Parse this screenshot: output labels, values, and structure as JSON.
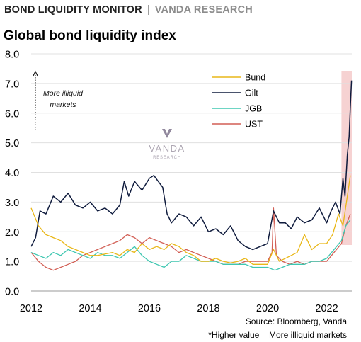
{
  "header": {
    "name": "BOND LIQUIDITY MONITOR",
    "separator": "|",
    "brand": "VANDA RESEARCH"
  },
  "chart_title": "Global bond liquidity index",
  "annotation": {
    "line1": "More illiquid",
    "line2": "markets"
  },
  "watermark": {
    "name": "VANDA",
    "sub": "RESEARCH"
  },
  "source": "Source: Bloomberg, Vanda",
  "footnote": "*Higher value = More illiquid markets",
  "chart_data": {
    "type": "line",
    "title": "Global bond liquidity index",
    "xlabel": "",
    "ylabel": "",
    "xlim": [
      2012,
      2022.85
    ],
    "ylim": [
      0,
      8
    ],
    "y_ticks": [
      "0.0",
      "1.0",
      "2.0",
      "3.0",
      "4.0",
      "5.0",
      "6.0",
      "7.0",
      "8.0"
    ],
    "x_ticks": [
      "2012",
      "2014",
      "2016",
      "2018",
      "2020",
      "2022"
    ],
    "grid": "horizontal",
    "legend_position": "top-right",
    "highlight_region": {
      "x_start": 2022.5,
      "x_end": 2022.85,
      "color": "#f6d2d2"
    },
    "series": [
      {
        "name": "Bund",
        "color": "#e9b718",
        "x": [
          2012.0,
          2012.25,
          2012.5,
          2012.75,
          2013.0,
          2013.25,
          2013.5,
          2013.75,
          2014.0,
          2014.25,
          2014.5,
          2014.75,
          2015.0,
          2015.25,
          2015.5,
          2015.75,
          2016.0,
          2016.25,
          2016.5,
          2016.75,
          2017.0,
          2017.25,
          2017.5,
          2017.75,
          2018.0,
          2018.25,
          2018.5,
          2018.75,
          2019.0,
          2019.25,
          2019.5,
          2019.75,
          2020.0,
          2020.2,
          2020.4,
          2020.6,
          2020.8,
          2021.0,
          2021.25,
          2021.5,
          2021.75,
          2022.0,
          2022.2,
          2022.4,
          2022.55,
          2022.7,
          2022.8
        ],
        "y": [
          2.8,
          2.2,
          1.9,
          1.8,
          1.7,
          1.5,
          1.4,
          1.3,
          1.2,
          1.2,
          1.25,
          1.3,
          1.2,
          1.4,
          1.3,
          1.6,
          1.4,
          1.5,
          1.4,
          1.6,
          1.5,
          1.3,
          1.2,
          1.0,
          1.0,
          1.1,
          1.0,
          0.95,
          1.0,
          1.1,
          0.9,
          0.9,
          0.9,
          1.4,
          1.0,
          1.1,
          1.2,
          1.3,
          1.9,
          1.4,
          1.6,
          1.6,
          1.9,
          2.6,
          2.2,
          3.2,
          3.9
        ]
      },
      {
        "name": "Gilt",
        "color": "#0f1b3d",
        "x": [
          2012.0,
          2012.15,
          2012.3,
          2012.5,
          2012.75,
          2013.0,
          2013.25,
          2013.5,
          2013.75,
          2014.0,
          2014.25,
          2014.5,
          2014.75,
          2015.0,
          2015.15,
          2015.3,
          2015.5,
          2015.75,
          2016.0,
          2016.15,
          2016.3,
          2016.45,
          2016.6,
          2016.75,
          2017.0,
          2017.25,
          2017.5,
          2017.75,
          2018.0,
          2018.25,
          2018.5,
          2018.75,
          2019.0,
          2019.25,
          2019.5,
          2019.75,
          2020.0,
          2020.2,
          2020.4,
          2020.6,
          2020.8,
          2021.0,
          2021.25,
          2021.5,
          2021.75,
          2022.0,
          2022.15,
          2022.3,
          2022.45,
          2022.55,
          2022.62,
          2022.7,
          2022.76,
          2022.8,
          2022.84
        ],
        "y": [
          1.5,
          1.8,
          2.7,
          2.6,
          3.2,
          3.0,
          3.3,
          2.9,
          2.8,
          3.0,
          2.7,
          2.8,
          2.6,
          2.9,
          3.7,
          3.2,
          3.7,
          3.4,
          3.8,
          3.9,
          3.7,
          3.5,
          2.6,
          2.3,
          2.6,
          2.5,
          2.2,
          2.5,
          2.0,
          2.1,
          1.9,
          2.2,
          1.7,
          1.5,
          1.4,
          1.5,
          1.6,
          2.7,
          2.3,
          2.3,
          2.1,
          2.5,
          2.3,
          2.4,
          2.8,
          2.3,
          2.7,
          3.0,
          2.6,
          3.8,
          3.2,
          4.6,
          5.2,
          6.2,
          7.1
        ]
      },
      {
        "name": "JGB",
        "color": "#3fc7b1",
        "x": [
          2012.0,
          2012.25,
          2012.5,
          2012.75,
          2013.0,
          2013.25,
          2013.5,
          2013.75,
          2014.0,
          2014.25,
          2014.5,
          2014.75,
          2015.0,
          2015.25,
          2015.5,
          2015.75,
          2016.0,
          2016.25,
          2016.5,
          2016.75,
          2017.0,
          2017.25,
          2017.5,
          2017.75,
          2018.0,
          2018.25,
          2018.5,
          2018.75,
          2019.0,
          2019.25,
          2019.5,
          2019.75,
          2020.0,
          2020.25,
          2020.5,
          2020.75,
          2021.0,
          2021.25,
          2021.5,
          2021.75,
          2022.0,
          2022.25,
          2022.5,
          2022.65,
          2022.8
        ],
        "y": [
          1.3,
          1.2,
          1.1,
          1.3,
          1.2,
          1.4,
          1.3,
          1.2,
          1.1,
          1.3,
          1.2,
          1.2,
          1.1,
          1.3,
          1.5,
          1.2,
          1.0,
          0.9,
          0.8,
          1.0,
          1.0,
          1.2,
          1.1,
          1.0,
          1.0,
          1.0,
          0.9,
          0.9,
          0.9,
          0.9,
          0.8,
          0.8,
          0.8,
          0.7,
          0.8,
          0.9,
          0.9,
          0.9,
          1.0,
          1.0,
          1.1,
          1.4,
          1.7,
          2.2,
          2.4
        ]
      },
      {
        "name": "UST",
        "color": "#d25f55",
        "x": [
          2012.0,
          2012.25,
          2012.5,
          2012.75,
          2013.0,
          2013.25,
          2013.5,
          2013.75,
          2014.0,
          2014.25,
          2014.5,
          2014.75,
          2015.0,
          2015.25,
          2015.5,
          2015.75,
          2016.0,
          2016.25,
          2016.5,
          2016.75,
          2017.0,
          2017.25,
          2017.5,
          2017.75,
          2018.0,
          2018.25,
          2018.5,
          2018.75,
          2019.0,
          2019.25,
          2019.5,
          2019.75,
          2020.0,
          2020.15,
          2020.2,
          2020.3,
          2020.5,
          2020.75,
          2021.0,
          2021.25,
          2021.5,
          2021.75,
          2022.0,
          2022.25,
          2022.5,
          2022.65,
          2022.8
        ],
        "y": [
          1.3,
          1.0,
          0.8,
          0.7,
          0.8,
          0.9,
          1.0,
          1.2,
          1.3,
          1.4,
          1.5,
          1.6,
          1.7,
          1.9,
          1.8,
          1.6,
          1.8,
          1.7,
          1.6,
          1.5,
          1.3,
          1.4,
          1.3,
          1.2,
          1.1,
          1.0,
          0.9,
          0.9,
          0.9,
          1.0,
          1.0,
          1.0,
          1.0,
          1.3,
          2.8,
          1.2,
          1.0,
          0.9,
          1.0,
          0.9,
          1.0,
          1.0,
          1.0,
          1.3,
          1.6,
          2.2,
          2.6
        ]
      }
    ]
  }
}
